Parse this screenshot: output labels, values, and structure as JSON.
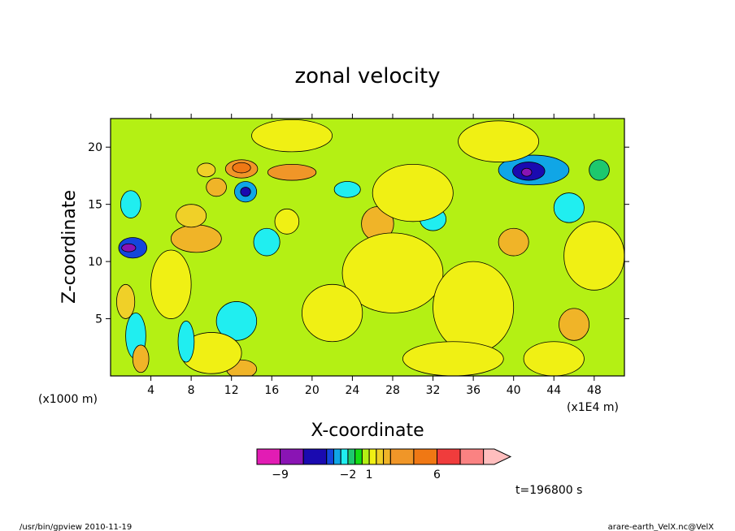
{
  "chart_data": {
    "type": "heatmap",
    "title": "zonal velocity",
    "xlabel": "X-coordinate",
    "ylabel": "Z-coordinate",
    "x_unit_left": "(x1000 m)",
    "x_unit_right": "(x1E4 m)",
    "xlim": [
      0,
      51
    ],
    "ylim": [
      0,
      22.5
    ],
    "xticks": [
      4,
      8,
      12,
      16,
      20,
      24,
      28,
      32,
      36,
      40,
      44,
      48
    ],
    "xtick_labels": [
      "4",
      "8",
      "12",
      "16",
      "20",
      "24",
      "28",
      "32",
      "36",
      "40",
      "44",
      "48"
    ],
    "yticks": [
      5,
      10,
      15,
      20
    ],
    "ytick_labels": [
      "5",
      "10",
      "15",
      "20"
    ],
    "background_level": 0,
    "blobs": [
      {
        "x": 2.2,
        "y": 11.2,
        "rx": 1.4,
        "ry": 0.9,
        "level": -5
      },
      {
        "x": 1.8,
        "y": 11.2,
        "rx": 0.7,
        "ry": 0.35,
        "level": -9
      },
      {
        "x": 13.0,
        "y": 18.1,
        "rx": 1.6,
        "ry": 0.8,
        "level": 4
      },
      {
        "x": 13.0,
        "y": 18.2,
        "rx": 0.9,
        "ry": 0.45,
        "level": 5
      },
      {
        "x": 18.0,
        "y": 17.8,
        "rx": 2.4,
        "ry": 0.7,
        "level": 4
      },
      {
        "x": 13.4,
        "y": 16.1,
        "rx": 1.1,
        "ry": 0.9,
        "level": -4
      },
      {
        "x": 13.4,
        "y": 16.1,
        "rx": 0.5,
        "ry": 0.4,
        "level": -7
      },
      {
        "x": 10.5,
        "y": 16.5,
        "rx": 1.0,
        "ry": 0.8,
        "level": 3
      },
      {
        "x": 8.5,
        "y": 12.0,
        "rx": 2.5,
        "ry": 1.2,
        "level": 3
      },
      {
        "x": 8.0,
        "y": 14.0,
        "rx": 1.5,
        "ry": 1.0,
        "level": 2
      },
      {
        "x": 42.0,
        "y": 18.0,
        "rx": 3.5,
        "ry": 1.3,
        "level": -4
      },
      {
        "x": 41.5,
        "y": 17.9,
        "rx": 1.6,
        "ry": 0.8,
        "level": -7
      },
      {
        "x": 41.3,
        "y": 17.8,
        "rx": 0.5,
        "ry": 0.35,
        "level": -9
      },
      {
        "x": 45.5,
        "y": 14.7,
        "rx": 1.5,
        "ry": 1.3,
        "level": -3
      },
      {
        "x": 12.5,
        "y": 4.8,
        "rx": 2.0,
        "ry": 1.7,
        "level": -3
      },
      {
        "x": 15.5,
        "y": 11.7,
        "rx": 1.3,
        "ry": 1.2,
        "level": -3
      },
      {
        "x": 23.5,
        "y": 16.3,
        "rx": 1.3,
        "ry": 0.7,
        "level": -3
      },
      {
        "x": 32.0,
        "y": 13.7,
        "rx": 1.3,
        "ry": 1.0,
        "level": -3
      },
      {
        "x": 26.5,
        "y": 13.3,
        "rx": 1.6,
        "ry": 1.5,
        "level": 3
      },
      {
        "x": 40.0,
        "y": 11.7,
        "rx": 1.5,
        "ry": 1.2,
        "level": 3
      },
      {
        "x": 46.0,
        "y": 4.5,
        "rx": 1.5,
        "ry": 1.4,
        "level": 3
      },
      {
        "x": 13.0,
        "y": 0.6,
        "rx": 1.5,
        "ry": 0.8,
        "level": 3
      },
      {
        "x": 17.5,
        "y": 13.5,
        "rx": 1.2,
        "ry": 1.1,
        "level": 1
      },
      {
        "x": 30.0,
        "y": 16.0,
        "rx": 4.0,
        "ry": 2.5,
        "level": 1
      },
      {
        "x": 28.0,
        "y": 9.0,
        "rx": 5.0,
        "ry": 3.5,
        "level": 1
      },
      {
        "x": 36.0,
        "y": 6.0,
        "rx": 4.0,
        "ry": 4.0,
        "level": 1
      },
      {
        "x": 22.0,
        "y": 5.5,
        "rx": 3.0,
        "ry": 2.5,
        "level": 1
      },
      {
        "x": 48.0,
        "y": 10.5,
        "rx": 3.0,
        "ry": 3.0,
        "level": 1
      },
      {
        "x": 38.5,
        "y": 20.5,
        "rx": 4.0,
        "ry": 1.8,
        "level": 1
      },
      {
        "x": 18.0,
        "y": 21.0,
        "rx": 4.0,
        "ry": 1.4,
        "level": 1
      },
      {
        "x": 6.0,
        "y": 8.0,
        "rx": 2.0,
        "ry": 3.0,
        "level": 1
      },
      {
        "x": 34.0,
        "y": 1.5,
        "rx": 5.0,
        "ry": 1.5,
        "level": 1
      },
      {
        "x": 10.0,
        "y": 2.0,
        "rx": 3.0,
        "ry": 1.8,
        "level": 1
      },
      {
        "x": 44.0,
        "y": 1.5,
        "rx": 3.0,
        "ry": 1.5,
        "level": 1
      },
      {
        "x": 2.5,
        "y": 3.5,
        "rx": 1.0,
        "ry": 2.0,
        "level": -3
      },
      {
        "x": 7.5,
        "y": 3.0,
        "rx": 0.8,
        "ry": 1.8,
        "level": -3
      },
      {
        "x": 1.5,
        "y": 6.5,
        "rx": 0.9,
        "ry": 1.5,
        "level": 2
      },
      {
        "x": 3.0,
        "y": 1.5,
        "rx": 0.8,
        "ry": 1.2,
        "level": 3
      },
      {
        "x": 48.5,
        "y": 18.0,
        "rx": 1.0,
        "ry": 0.9,
        "level": -2
      },
      {
        "x": 2.0,
        "y": 15.0,
        "rx": 1.0,
        "ry": 1.2,
        "level": -3
      },
      {
        "x": 9.5,
        "y": 18.0,
        "rx": 0.9,
        "ry": 0.6,
        "level": 2
      }
    ],
    "colorbar": {
      "levels": [
        -11,
        -9,
        -7,
        -5,
        -4,
        -3,
        -2,
        -1,
        0,
        1,
        2,
        3,
        4,
        5,
        6,
        7,
        9,
        12
      ],
      "colors": [
        "#e21cb4",
        "#8a14b4",
        "#1a0ab0",
        "#1446dc",
        "#10a6e6",
        "#20eef0",
        "#1ec86e",
        "#14dc14",
        "#b4f014",
        "#f0f014",
        "#f0d028",
        "#f0b428",
        "#f09628",
        "#f07814",
        "#f03c3c",
        "#fa8282",
        "#ffbebe"
      ],
      "labels": [
        {
          "value": -9,
          "text": "−9"
        },
        {
          "value": -2,
          "text": "−2"
        },
        {
          "value": 1,
          "text": "1"
        },
        {
          "value": 6,
          "text": "6"
        }
      ]
    },
    "time_label": "t=196800 s",
    "grid": false,
    "legend": "bottom"
  },
  "footer": {
    "left": "/usr/bin/gpview   2010-11-19",
    "right": "arare-earth_VelX.nc@VelX"
  }
}
